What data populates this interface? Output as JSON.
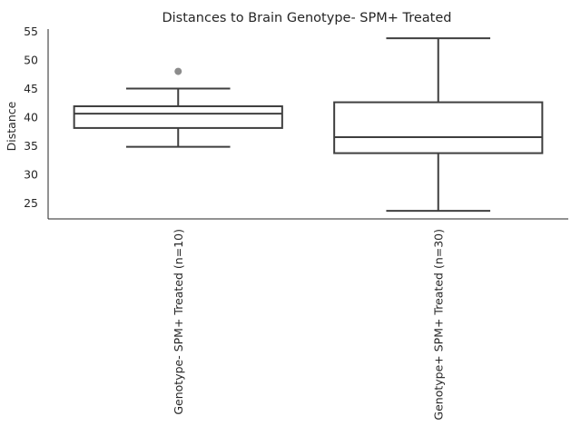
{
  "chart_data": {
    "type": "box",
    "title": "Distances to Brain Genotype- SPM+ Treated",
    "xlabel": "",
    "ylabel": "Distance",
    "ylim": [
      22.2,
      55.4
    ],
    "yticks": [
      25,
      30,
      35,
      40,
      45,
      50,
      55
    ],
    "grid": false,
    "categories": [
      "Genotype- SPM+ Treated (n=10)",
      "Genotype+ SPM+ Treated (n=30)"
    ],
    "boxes": [
      {
        "whisker_low": 34.8,
        "q1": 38.1,
        "median": 40.6,
        "q3": 41.9,
        "whisker_high": 45.0,
        "outliers": [
          48.0
        ]
      },
      {
        "whisker_low": 23.6,
        "q1": 33.7,
        "median": 36.5,
        "q3": 42.6,
        "whisker_high": 53.8,
        "outliers": []
      }
    ],
    "colors": {
      "box_line": "#3f3f3f",
      "box_fill": "#ffffff",
      "outlier": "#8c8c8c",
      "axis": "#262626"
    }
  }
}
